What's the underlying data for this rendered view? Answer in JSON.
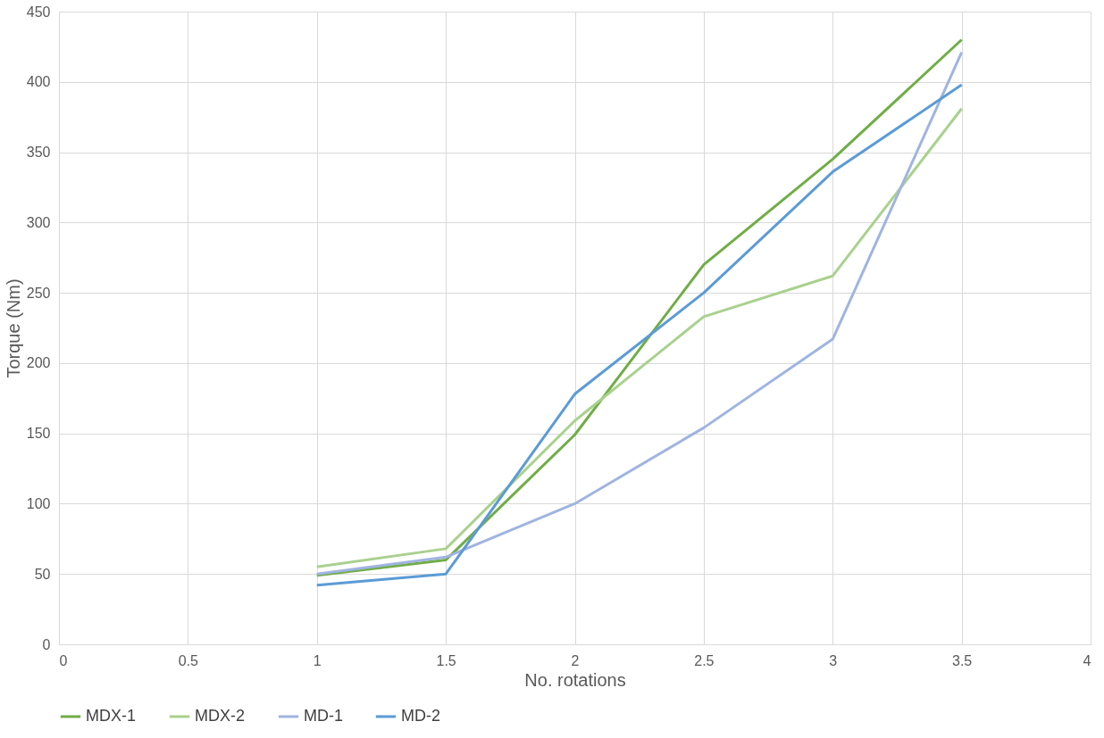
{
  "chart_data": {
    "type": "line",
    "xlabel": "No. rotations",
    "ylabel": "Torque (Nm)",
    "x": [
      1,
      1.5,
      2,
      2.5,
      3,
      3.5
    ],
    "series": [
      {
        "name": "MDX-1",
        "color": "#70ad47",
        "values": [
          49,
          60,
          149,
          270,
          345,
          430
        ]
      },
      {
        "name": "MDX-2",
        "color": "#a9d18e",
        "values": [
          55,
          68,
          159,
          233,
          262,
          381
        ]
      },
      {
        "name": "MD-1",
        "color": "#9fb4e0",
        "values": [
          50,
          62,
          100,
          154,
          217,
          421
        ]
      },
      {
        "name": "MD-2",
        "color": "#5b9bd5",
        "values": [
          42,
          50,
          178,
          250,
          336,
          398
        ]
      }
    ],
    "xlim": [
      0,
      4
    ],
    "xticks": [
      0,
      0.5,
      1,
      1.5,
      2,
      2.5,
      3,
      3.5,
      4
    ],
    "ylim": [
      0,
      450
    ],
    "yticks": [
      0,
      50,
      100,
      150,
      200,
      250,
      300,
      350,
      400,
      450
    ],
    "grid": true,
    "legend": "bottom",
    "marker": "none",
    "line_style": "solid"
  }
}
